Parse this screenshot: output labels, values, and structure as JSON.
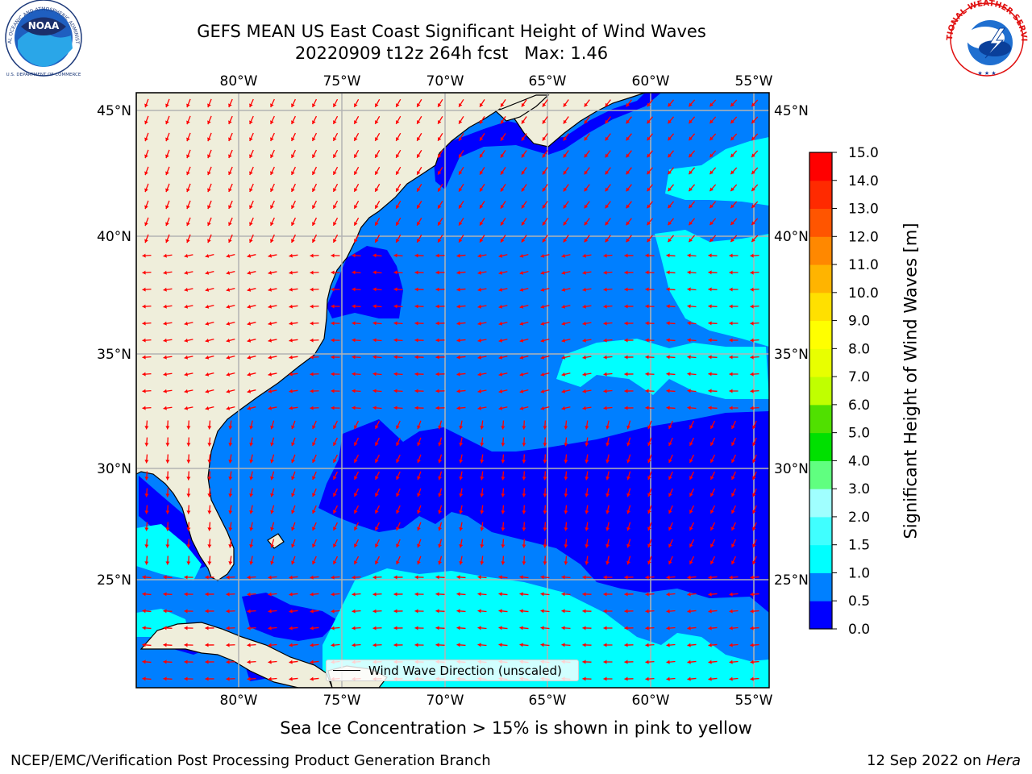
{
  "title": {
    "line1": "GEFS MEAN US East Coast Significant Height of Wind Waves",
    "line2": "20220909 t12z 264h fcst   Max: 1.46"
  },
  "logos": {
    "left": {
      "text": "NOAA",
      "ring_top": "NATIONAL OCEANIC AND ATMOSPHERIC ADMINISTRATION",
      "ring_bottom": "U.S. DEPARTMENT OF COMMERCE"
    },
    "right": {
      "ring_text": "NATIONAL WEATHER SERVICE"
    }
  },
  "map": {
    "lon_labels": [
      "80°W",
      "75°W",
      "70°W",
      "65°W",
      "60°W",
      "55°W"
    ],
    "lat_labels": [
      "45°N",
      "40°N",
      "35°N",
      "30°N",
      "25°N"
    ],
    "land_color": "#efeedb",
    "vector_color": "#ff0000"
  },
  "legend": {
    "label": "Wind Wave Direction (unscaled)"
  },
  "colorbar": {
    "label": "Significant Height of Wind Waves [m]",
    "ticks": [
      "0.0",
      "0.5",
      "1.0",
      "1.5",
      "2.0",
      "3.0",
      "4.0",
      "5.0",
      "6.0",
      "7.0",
      "8.0",
      "9.0",
      "10.0",
      "11.0",
      "12.0",
      "13.0",
      "14.0",
      "15.0"
    ],
    "colors": [
      "#0000ff",
      "#0080ff",
      "#00ffff",
      "#40ffff",
      "#a0ffff",
      "#60ff80",
      "#00e000",
      "#50e000",
      "#c0ff00",
      "#e8ff00",
      "#ffff00",
      "#ffe000",
      "#ffb400",
      "#ff8800",
      "#ff5500",
      "#ff2a00",
      "#ff0000"
    ]
  },
  "footnote": "Sea Ice Concentration > 15% is shown in pink to yellow",
  "credit": "NCEP/EMC/Verification Post Processing Product Generation Branch",
  "run_date": {
    "text": "12 Sep 2022 on ",
    "machine": "Hera"
  }
}
